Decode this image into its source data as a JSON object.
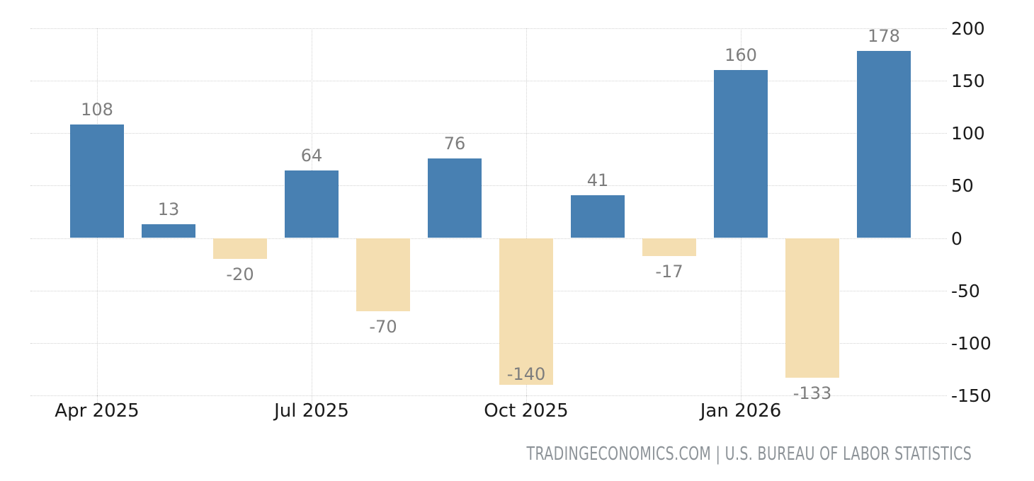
{
  "chart_data": {
    "type": "bar",
    "title": "",
    "xlabel": "",
    "ylabel": "",
    "values": [
      108,
      13,
      -20,
      64,
      -70,
      76,
      -140,
      41,
      -17,
      160,
      -133,
      178
    ],
    "x_ticks": [
      {
        "label": "Apr 2025",
        "bar_index": 0
      },
      {
        "label": "Jul 2025",
        "bar_index": 3
      },
      {
        "label": "Oct 2025",
        "bar_index": 6
      },
      {
        "label": "Jan 2026",
        "bar_index": 9
      }
    ],
    "y_ticks": [
      200,
      150,
      100,
      50,
      0,
      -50,
      -100,
      -150
    ],
    "ylim": [
      -150,
      200
    ],
    "yaxis_position": "right",
    "grid": "dotted",
    "legend": "none",
    "data_labels_shown": true,
    "positive_color": "#4880b2",
    "negative_color": "#f4deb1",
    "value_label_color": "#7d7d7d",
    "axis_label_color": "#1a1a1a",
    "gridline_color": "#d2d2d2",
    "background_color": "#ffffff"
  },
  "attribution": "TRADINGECONOMICS.COM | U.S. BUREAU OF LABOR STATISTICS",
  "attribution_color": "#8d9398"
}
